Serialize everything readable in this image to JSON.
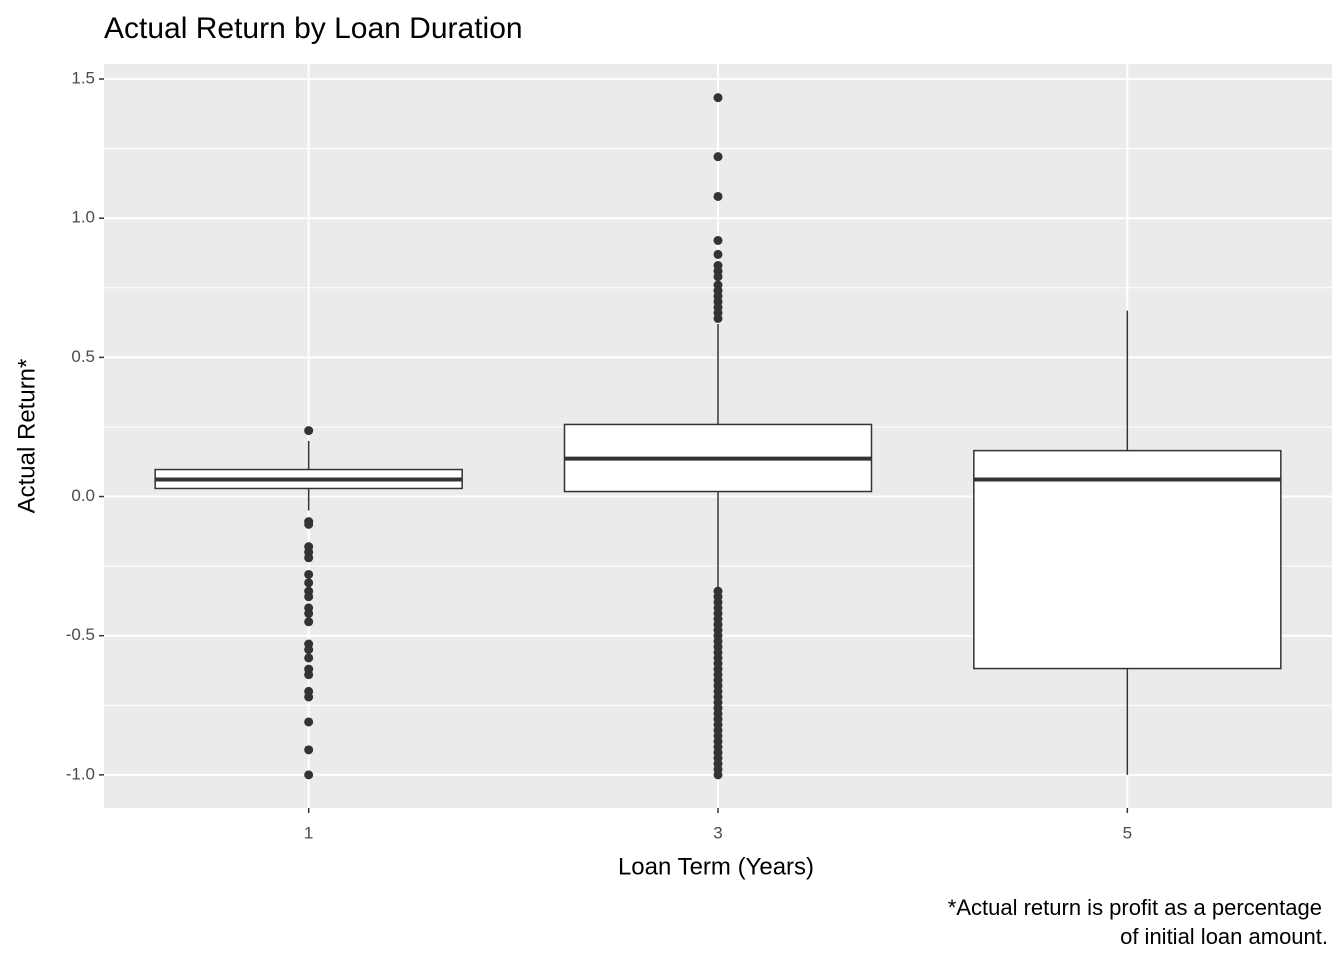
{
  "chart_data": {
    "type": "box",
    "title": "Actual Return by Loan Duration",
    "x_label": "Loan Term (Years)",
    "y_label": "Actual Return*",
    "caption": [
      "*Actual return is profit as a percentage",
      "of initial loan amount."
    ],
    "categories": [
      "1",
      "3",
      "5"
    ],
    "boxes": [
      {
        "whisker_low": -0.05,
        "q1": 0.029,
        "median": 0.061,
        "q3": 0.097,
        "whisker_high": 0.2,
        "outliers": [
          0.237,
          -0.09,
          -0.1,
          -0.18,
          -0.2,
          -0.22,
          -0.28,
          -0.31,
          -0.34,
          -0.36,
          -0.4,
          -0.42,
          -0.45,
          -0.53,
          -0.55,
          -0.58,
          -0.62,
          -0.64,
          -0.7,
          -0.72,
          -0.81,
          -0.91,
          -1.0
        ]
      },
      {
        "whisker_low": -0.334,
        "q1": 0.018,
        "median": 0.136,
        "q3": 0.259,
        "whisker_high": 0.62,
        "outliers": [
          1.433,
          1.221,
          1.078,
          0.92,
          0.87,
          0.83,
          0.81,
          0.79,
          0.76,
          0.74,
          0.72,
          0.7,
          0.68,
          0.66,
          0.64,
          -0.34,
          -0.36,
          -0.38,
          -0.4,
          -0.42,
          -0.44,
          -0.46,
          -0.48,
          -0.5,
          -0.52,
          -0.54,
          -0.56,
          -0.58,
          -0.6,
          -0.62,
          -0.64,
          -0.66,
          -0.68,
          -0.7,
          -0.72,
          -0.74,
          -0.76,
          -0.78,
          -0.8,
          -0.82,
          -0.84,
          -0.86,
          -0.88,
          -0.9,
          -0.92,
          -0.94,
          -0.96,
          -0.98,
          -1.0
        ]
      },
      {
        "whisker_low": -1.0,
        "q1": -0.618,
        "median": 0.061,
        "q3": 0.165,
        "whisker_high": 0.668,
        "outliers": []
      }
    ],
    "ylim": [
      -1.119,
      1.554
    ],
    "yticks": [
      1.5,
      {
        "value": 1,
        "label": "1.0"
      },
      0.5,
      {
        "value": 0,
        "label": "0.0"
      },
      -0.5,
      {
        "value": -1,
        "label": "-1.0"
      }
    ],
    "grid": true,
    "minor_grid": true,
    "box_fill": "#ffffff",
    "line_color": "#333333",
    "panel_color": "#ebebeb"
  }
}
